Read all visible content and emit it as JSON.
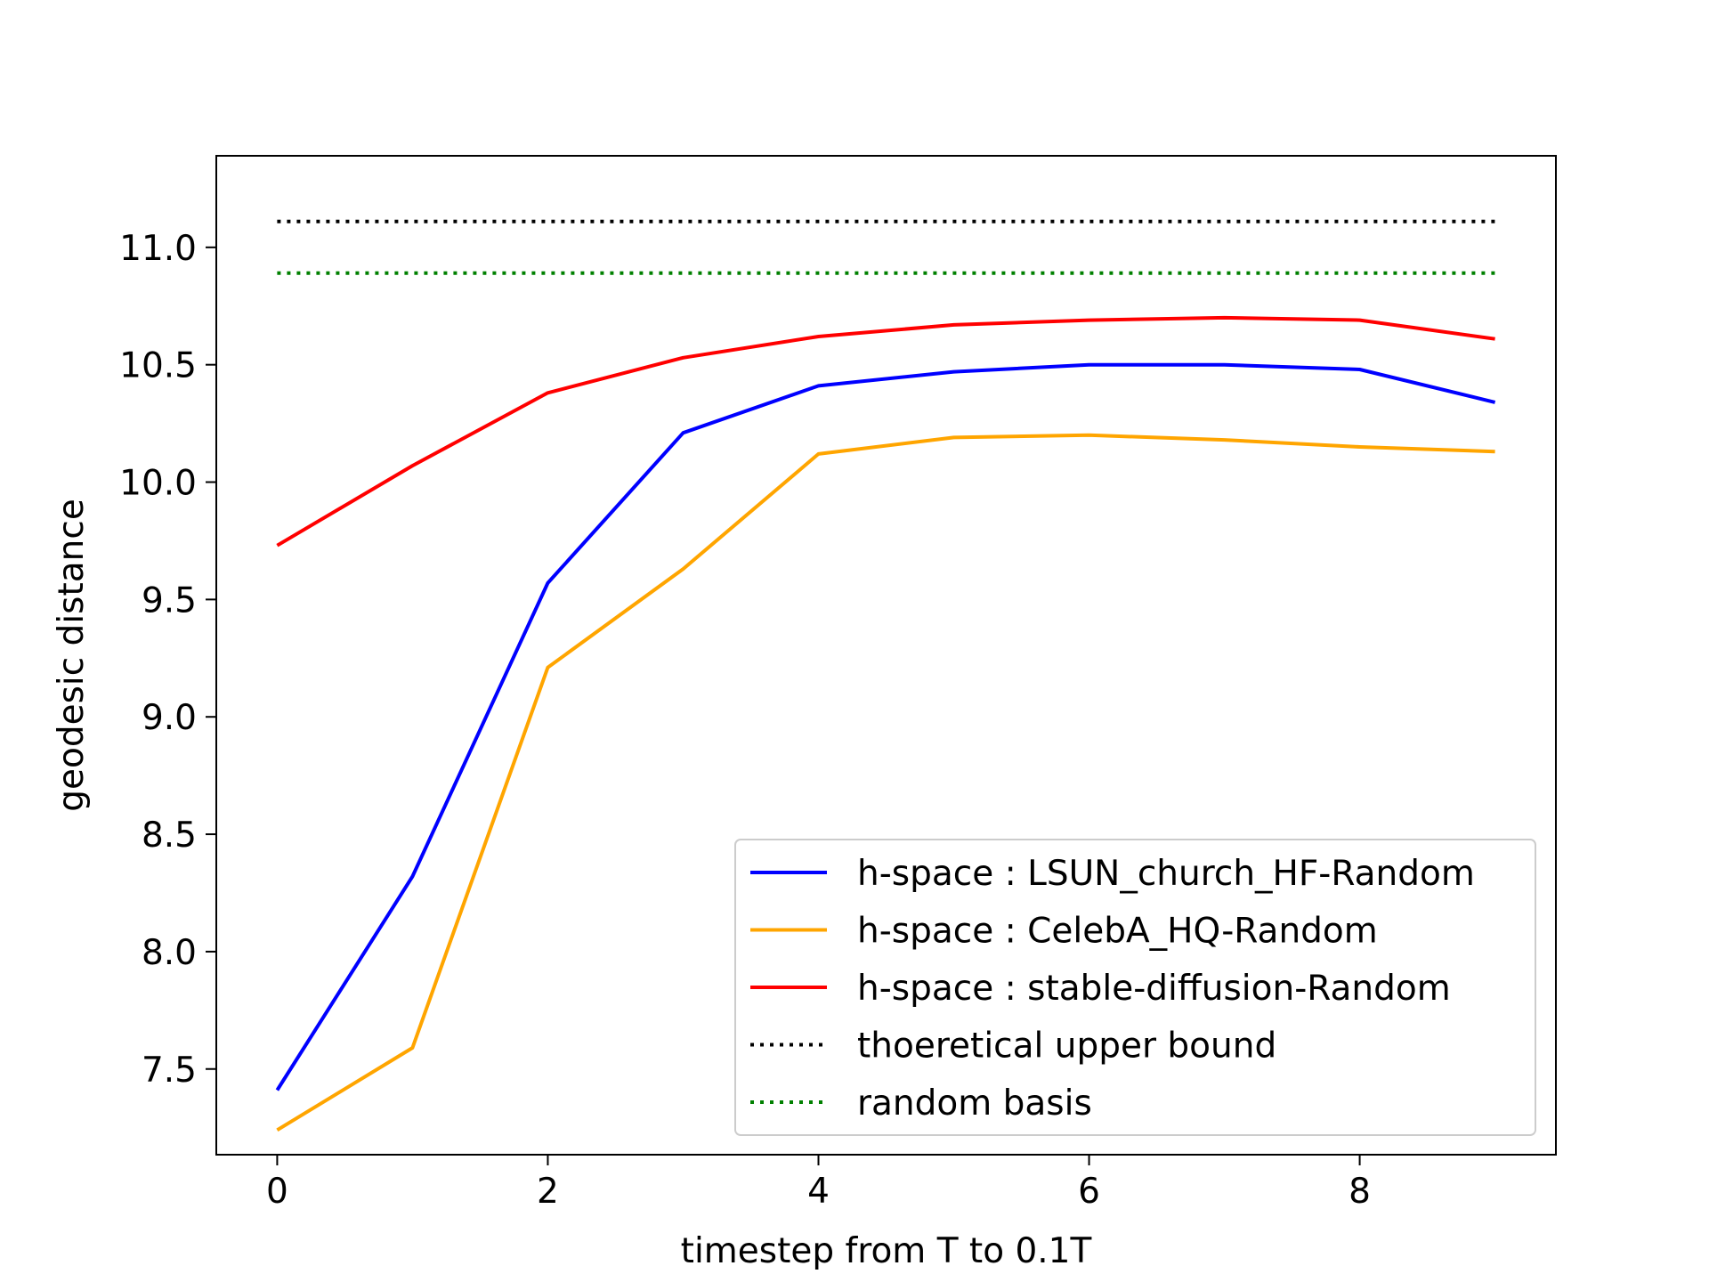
{
  "chart_data": {
    "type": "line",
    "title": "",
    "xlabel": "timestep from T to 0.1T",
    "ylabel": "geodesic distance",
    "xlim": [
      -0.45,
      9.45
    ],
    "ylim": [
      7.135,
      11.39
    ],
    "xticks": [
      0,
      2,
      4,
      6,
      8
    ],
    "yticks": [
      7.5,
      8.0,
      8.5,
      9.0,
      9.5,
      10.0,
      10.5,
      11.0
    ],
    "xtick_labels": [
      "0",
      "2",
      "4",
      "6",
      "8"
    ],
    "ytick_labels": [
      "7.5",
      "8.0",
      "8.5",
      "9.0",
      "9.5",
      "10.0",
      "10.5",
      "11.0"
    ],
    "grid": false,
    "legend_position": "lower-right",
    "x": [
      0,
      1,
      2,
      3,
      4,
      5,
      6,
      7,
      8,
      9
    ],
    "series": [
      {
        "name": "h-space : LSUN_church_HF-Random",
        "color": "#0000ff",
        "style": "solid",
        "values": [
          7.41,
          8.32,
          9.57,
          10.21,
          10.41,
          10.47,
          10.5,
          10.5,
          10.48,
          10.34
        ]
      },
      {
        "name": "h-space : CelebA_HQ-Random",
        "color": "#ffa500",
        "style": "solid",
        "values": [
          7.24,
          7.59,
          9.21,
          9.63,
          10.12,
          10.19,
          10.2,
          10.18,
          10.15,
          10.13
        ]
      },
      {
        "name": "h-space : stable-diffusion-Random",
        "color": "#ff0000",
        "style": "solid",
        "values": [
          9.73,
          10.07,
          10.38,
          10.53,
          10.62,
          10.67,
          10.69,
          10.7,
          10.69,
          10.61
        ]
      },
      {
        "name": "thoeretical upper bound",
        "color": "#000000",
        "style": "dotted",
        "values": [
          11.11,
          11.11,
          11.11,
          11.11,
          11.11,
          11.11,
          11.11,
          11.11,
          11.11,
          11.11
        ]
      },
      {
        "name": "random basis",
        "color": "#008000",
        "style": "dotted",
        "values": [
          10.89,
          10.89,
          10.89,
          10.89,
          10.89,
          10.89,
          10.89,
          10.89,
          10.89,
          10.89
        ]
      }
    ]
  }
}
